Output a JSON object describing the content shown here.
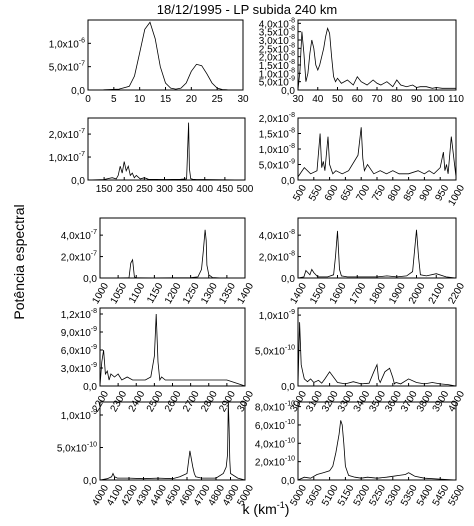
{
  "figure": {
    "title": "18/12/1995 - LP subida 240 km",
    "xlabel_main": "k (km",
    "xlabel_sup": "-1",
    "xlabel_close": ")",
    "ylabel": "Potência espectral"
  },
  "chart_data": [
    {
      "type": "line",
      "xticks": [
        "0",
        "5",
        "10",
        "15",
        "20",
        "25",
        "30"
      ],
      "yticks": [
        "0,0",
        "5,0x10",
        "1,0x10"
      ],
      "ytick_exp": [
        "",
        "-7",
        "-6"
      ],
      "xlim": [
        0,
        30
      ],
      "ylim": [
        0,
        1.5e-06
      ],
      "series": [
        {
          "x": [
            0,
            3,
            6,
            8,
            9,
            10,
            11,
            12,
            13,
            14,
            15,
            16,
            17,
            18,
            19,
            20,
            21,
            22,
            23,
            24,
            25,
            26,
            27,
            28,
            30
          ],
          "y": [
            0,
            5e-09,
            2e-08,
            8e-08,
            3e-07,
            8e-07,
            1.3e-06,
            1.45e-06,
            1.1e-06,
            5e-07,
            1.5e-07,
            4e-08,
            2e-08,
            4e-08,
            1.5e-07,
            4e-07,
            5.5e-07,
            5.2e-07,
            3.5e-07,
            1.5e-07,
            4e-08,
            1e-08,
            5e-09,
            2e-09,
            0
          ]
        }
      ]
    },
    {
      "type": "line",
      "xticks": [
        "30",
        "40",
        "50",
        "60",
        "70",
        "80",
        "90",
        "100",
        "110"
      ],
      "yticks": [
        "0,0",
        "5,0x10",
        "1,0x10",
        "1,5x10",
        "2,0x10",
        "2,5x10",
        "3,0x10",
        "3,5x10",
        "4,0x10"
      ],
      "ytick_exp": [
        "",
        "-9",
        "-8",
        "-8",
        "-8",
        "-8",
        "-8",
        "-8",
        "-8"
      ],
      "xlim": [
        30,
        110
      ],
      "ylim": [
        0,
        4.2e-08
      ],
      "series": [
        {
          "x": [
            30,
            31,
            32,
            33,
            34,
            35,
            36,
            37,
            38,
            39,
            40,
            41,
            42,
            43,
            44,
            45,
            46,
            47,
            48,
            49,
            50,
            52,
            55,
            58,
            60,
            62,
            65,
            68,
            70,
            72,
            75,
            78,
            80,
            82,
            85,
            88,
            90,
            92,
            95,
            98,
            100,
            103,
            106,
            110
          ],
          "y": [
            0,
            1.2e-08,
            3.5e-08,
            2.2e-08,
            5e-09,
            1e-08,
            2.2e-08,
            3e-08,
            2.5e-08,
            1.5e-08,
            1.2e-08,
            1.5e-08,
            2e-08,
            2.5e-08,
            3.2e-08,
            3.7e-08,
            3.4e-08,
            2e-08,
            8e-09,
            5e-09,
            7e-09,
            4e-09,
            6e-09,
            3e-09,
            8e-09,
            5e-09,
            3e-09,
            6e-09,
            4e-09,
            3e-09,
            5e-09,
            2e-09,
            6e-09,
            3e-09,
            2e-09,
            3e-09,
            1.5e-09,
            2e-09,
            2e-09,
            1e-09,
            1.5e-09,
            1e-09,
            1e-09,
            1e-09
          ]
        }
      ]
    },
    {
      "type": "line",
      "xticks": [
        "150",
        "200",
        "250",
        "300",
        "350",
        "400",
        "450",
        "500"
      ],
      "yticks": [
        "0,0",
        "1,0x10",
        "2,0x10"
      ],
      "ytick_exp": [
        "",
        "-7",
        "-7"
      ],
      "xlim": [
        110,
        500
      ],
      "ylim": [
        0,
        2.7e-07
      ],
      "series": [
        {
          "x": [
            110,
            150,
            170,
            180,
            185,
            190,
            195,
            200,
            205,
            210,
            215,
            220,
            225,
            230,
            240,
            250,
            260,
            300,
            340,
            355,
            360,
            362,
            365,
            370,
            380,
            400,
            450,
            500
          ],
          "y": [
            0,
            2e-09,
            1e-08,
            5e-09,
            2e-08,
            6e-08,
            3e-08,
            8e-08,
            4e-08,
            6e-08,
            2e-08,
            3e-08,
            1e-08,
            2e-08,
            5e-09,
            1e-08,
            3e-09,
            2e-09,
            3e-09,
            5e-09,
            2.5e-07,
            5e-08,
            6e-09,
            3e-09,
            2e-09,
            2e-09,
            1e-09,
            0
          ]
        }
      ]
    },
    {
      "type": "line",
      "xticks": [
        "500",
        "550",
        "600",
        "650",
        "700",
        "750",
        "800",
        "850",
        "900",
        "950",
        "1000"
      ],
      "yticks": [
        "0,0",
        "5,0x10",
        "1,0x10",
        "1,5x10",
        "2,0x10"
      ],
      "ytick_exp": [
        "",
        "-9",
        "-8",
        "-8",
        "-8"
      ],
      "xlim": [
        500,
        1000
      ],
      "ylim": [
        0,
        2e-08
      ],
      "series": [
        {
          "x": [
            500,
            520,
            540,
            560,
            570,
            575,
            580,
            585,
            595,
            600,
            610,
            620,
            640,
            660,
            690,
            700,
            705,
            710,
            720,
            740,
            760,
            780,
            800,
            820,
            850,
            880,
            900,
            915,
            930,
            950,
            960,
            965,
            970,
            975,
            985,
            1000
          ],
          "y": [
            1e-09,
            4e-09,
            2e-09,
            3e-09,
            1.5e-08,
            4e-09,
            6e-09,
            3e-09,
            1.4e-08,
            5e-09,
            2e-09,
            3e-09,
            2e-09,
            3e-09,
            8e-09,
            1.7e-08,
            7e-09,
            3e-09,
            5e-09,
            2e-09,
            3e-09,
            2e-09,
            3e-09,
            2e-09,
            2e-09,
            3e-09,
            2e-09,
            3e-09,
            2e-09,
            4e-09,
            9e-09,
            3e-09,
            5e-09,
            2e-09,
            1.4e-08,
            1e-09
          ]
        }
      ]
    },
    {
      "type": "line",
      "xticks": [
        "1000",
        "1050",
        "1100",
        "1150",
        "1200",
        "1250",
        "1300",
        "1350",
        "1400"
      ],
      "yticks": [
        "0,0",
        "2,0x10",
        "4,0x10"
      ],
      "ytick_exp": [
        "",
        "-7",
        "-7"
      ],
      "xlim": [
        1000,
        1400
      ],
      "ylim": [
        0,
        5.6e-07
      ],
      "series": [
        {
          "x": [
            1000,
            1050,
            1080,
            1085,
            1090,
            1095,
            1100,
            1150,
            1200,
            1250,
            1270,
            1280,
            1285,
            1290,
            1293,
            1295,
            1300,
            1310,
            1330,
            1400
          ],
          "y": [
            0,
            1e-09,
            3e-09,
            1.4e-07,
            1.7e-07,
            1e-08,
            2e-09,
            1e-09,
            2e-09,
            3e-09,
            1e-08,
            8e-08,
            2.5e-07,
            4.5e-07,
            3.5e-07,
            1.2e-07,
            3e-08,
            5e-09,
            1e-09,
            0
          ]
        }
      ]
    },
    {
      "type": "line",
      "xticks": [
        "1400",
        "1500",
        "1600",
        "1700",
        "1800",
        "1900",
        "2000",
        "2100",
        "2200"
      ],
      "yticks": [
        "0,0",
        "2,0x10",
        "4,0x10"
      ],
      "ytick_exp": [
        "",
        "-8",
        "-8"
      ],
      "xlim": [
        1400,
        2200
      ],
      "ylim": [
        0,
        5.6e-08
      ],
      "series": [
        {
          "x": [
            1400,
            1430,
            1440,
            1460,
            1470,
            1480,
            1500,
            1550,
            1580,
            1590,
            1600,
            1610,
            1620,
            1650,
            1700,
            1800,
            1850,
            1900,
            1950,
            1980,
            1990,
            2000,
            2010,
            2020,
            2050,
            2100,
            2150,
            2200
          ],
          "y": [
            0,
            1e-09,
            7e-09,
            3e-09,
            8e-09,
            5e-09,
            1e-09,
            1e-09,
            3e-09,
            2e-08,
            4.4e-08,
            8e-09,
            2e-09,
            1e-09,
            1e-09,
            1e-09,
            2e-09,
            1e-09,
            2e-09,
            6e-09,
            2.5e-08,
            4.5e-08,
            2e-08,
            3e-09,
            2e-09,
            4e-09,
            1e-09,
            0
          ]
        }
      ]
    },
    {
      "type": "line",
      "xticks": [
        "2200",
        "2300",
        "2400",
        "2500",
        "2600",
        "2700",
        "2800",
        "2900",
        "3000"
      ],
      "yticks": [
        "0,0",
        "3,0x10",
        "6,0x10",
        "9,0x10",
        "1,2x10"
      ],
      "ytick_exp": [
        "",
        "-9",
        "-9",
        "-9",
        "-8"
      ],
      "xlim": [
        2200,
        3000
      ],
      "ylim": [
        0,
        1.3e-08
      ],
      "series": [
        {
          "x": [
            2200,
            2210,
            2220,
            2230,
            2240,
            2250,
            2260,
            2280,
            2300,
            2320,
            2350,
            2380,
            2400,
            2450,
            2480,
            2500,
            2510,
            2520,
            2530,
            2540,
            2560,
            2600,
            2700,
            2800,
            2900,
            3000
          ],
          "y": [
            0,
            4e-09,
            6e-09,
            2e-09,
            2.5e-09,
            1e-09,
            2e-09,
            1.5e-09,
            2e-09,
            1e-09,
            1.5e-09,
            1e-09,
            1e-09,
            1e-09,
            1.5e-09,
            5e-09,
            1.2e-08,
            4e-09,
            1e-09,
            1.5e-09,
            1e-09,
            1e-09,
            1e-09,
            1e-09,
            1e-09,
            0
          ]
        }
      ]
    },
    {
      "type": "line",
      "xticks": [
        "3000",
        "3100",
        "3200",
        "3300",
        "3400",
        "3500",
        "3600",
        "3700",
        "3800",
        "3900",
        "4000"
      ],
      "yticks": [
        "0,0",
        "5,0x10",
        "1,0x10"
      ],
      "ytick_exp": [
        "",
        "-10",
        "-9"
      ],
      "xlim": [
        3000,
        4000
      ],
      "ylim": [
        0,
        1.1e-09
      ],
      "series": [
        {
          "x": [
            3000,
            3010,
            3020,
            3030,
            3040,
            3060,
            3080,
            3100,
            3130,
            3150,
            3170,
            3200,
            3250,
            3300,
            3350,
            3400,
            3450,
            3480,
            3500,
            3510,
            3520,
            3550,
            3580,
            3600,
            3610,
            3620,
            3650,
            3700,
            3750,
            3800,
            3850,
            3900,
            3950,
            4000
          ],
          "y": [
            0,
            9e-10,
            3e-10,
            2e-10,
            1e-10,
            6e-11,
            1e-10,
            5e-11,
            8e-11,
            4e-11,
            1e-10,
            2e-10,
            5e-11,
            3e-11,
            6e-11,
            3e-11,
            4e-11,
            2e-10,
            3e-10,
            1e-10,
            5e-11,
            2e-10,
            2.5e-10,
            1.2e-10,
            3e-11,
            5e-11,
            3e-11,
            1e-10,
            5e-11,
            3e-11,
            5e-11,
            3e-11,
            2e-11,
            0
          ]
        }
      ]
    },
    {
      "type": "line",
      "xticks": [
        "4000",
        "4100",
        "4200",
        "4300",
        "4400",
        "4500",
        "4600",
        "4700",
        "4800",
        "4900",
        "5000"
      ],
      "yticks": [
        "0,0",
        "5,0x10",
        "1,0x10"
      ],
      "ytick_exp": [
        "",
        "-10",
        "-9"
      ],
      "xlim": [
        4000,
        5000
      ],
      "ylim": [
        0,
        1.2e-09
      ],
      "series": [
        {
          "x": [
            4000,
            4050,
            4080,
            4090,
            4100,
            4120,
            4200,
            4300,
            4400,
            4500,
            4550,
            4600,
            4620,
            4640,
            4650,
            4660,
            4700,
            4800,
            4850,
            4870,
            4880,
            4885,
            4890,
            4895,
            4900,
            4950,
            5000
          ],
          "y": [
            0,
            2e-11,
            5e-11,
            1e-10,
            5e-11,
            3e-11,
            3e-11,
            2e-11,
            3e-11,
            2e-11,
            5e-11,
            1e-10,
            4.5e-10,
            2e-10,
            1e-10,
            5e-11,
            3e-11,
            3e-11,
            1e-10,
            2e-10,
            4e-10,
            1.2e-09,
            8e-10,
            3e-10,
            1e-10,
            3e-11,
            0
          ]
        }
      ]
    },
    {
      "type": "line",
      "xticks": [
        "5000",
        "5050",
        "5100",
        "5150",
        "5200",
        "5250",
        "5300",
        "5350",
        "5400",
        "5450",
        "5500"
      ],
      "yticks": [
        "0,0",
        "2,0x10",
        "4,0x10",
        "6,0x10",
        "8,0x10"
      ],
      "ytick_exp": [
        "",
        "-10",
        "-10",
        "-10",
        "-10"
      ],
      "xlim": [
        5000,
        5500
      ],
      "ylim": [
        0,
        8.5e-10
      ],
      "series": [
        {
          "x": [
            5000,
            5020,
            5040,
            5060,
            5080,
            5100,
            5110,
            5120,
            5130,
            5135,
            5140,
            5145,
            5150,
            5160,
            5180,
            5200,
            5220,
            5250,
            5280,
            5300,
            5320,
            5340,
            5350,
            5360,
            5370,
            5400,
            5450,
            5500
          ],
          "y": [
            0,
            3e-11,
            2e-11,
            6e-11,
            8e-11,
            1e-10,
            1.5e-10,
            3e-10,
            5e-10,
            6.5e-10,
            6e-10,
            4e-10,
            1.5e-10,
            5e-11,
            3e-11,
            2e-11,
            3e-11,
            2e-11,
            3e-11,
            4e-11,
            5e-11,
            6e-11,
            8e-11,
            6e-11,
            4e-11,
            2e-11,
            1e-11,
            0
          ]
        }
      ]
    }
  ]
}
